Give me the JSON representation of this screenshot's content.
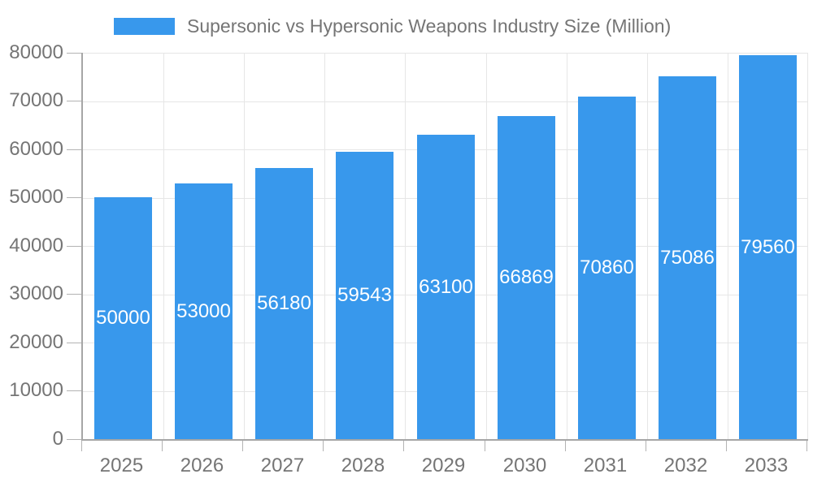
{
  "chart_data": {
    "type": "bar",
    "title": "Supersonic vs Hypersonic Weapons Industry Size (Million)",
    "legend_position": "top",
    "categories": [
      "2025",
      "2026",
      "2027",
      "2028",
      "2029",
      "2030",
      "2031",
      "2032",
      "2033"
    ],
    "series": [
      {
        "name": "Supersonic vs Hypersonic Weapons Industry Size (Million)",
        "values": [
          50000,
          53000,
          56180,
          59543,
          63100,
          66869,
          70860,
          75086,
          79560
        ]
      }
    ],
    "bar_value_labels": [
      "50000",
      "53000",
      "56180",
      "59543",
      "63100",
      "66869",
      "70860",
      "75086",
      "79560"
    ],
    "xlabel": "",
    "ylabel": "",
    "ylim": [
      0,
      80000
    ],
    "ytick_step": 10000,
    "yticks": [
      0,
      10000,
      20000,
      30000,
      40000,
      50000,
      60000,
      70000,
      80000
    ],
    "grid": {
      "horizontal": true,
      "vertical": true
    },
    "colors": {
      "bar": "#3898ec",
      "bar_label": "#ffffff",
      "axis_text": "#757575",
      "axis_line": "#a6a6a6",
      "tick": "#b3b3b3",
      "grid_line": "#e6e6e6",
      "background": "#ffffff"
    }
  }
}
